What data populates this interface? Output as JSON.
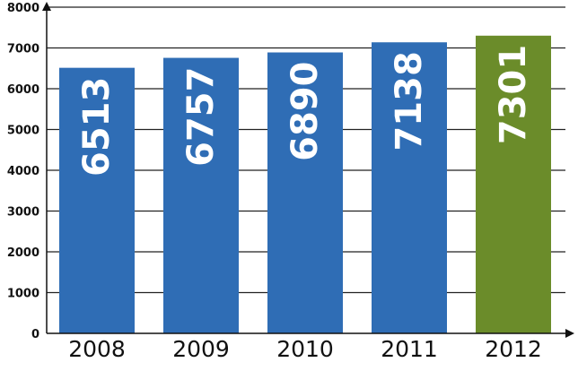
{
  "chart_data": {
    "type": "bar",
    "categories": [
      "2008",
      "2009",
      "2010",
      "2011",
      "2012"
    ],
    "values": [
      6513,
      6757,
      6890,
      7138,
      7301
    ],
    "data_labels": [
      "6513",
      "6757",
      "6890",
      "7138",
      "7301"
    ],
    "title": "",
    "xlabel": "",
    "ylabel": "",
    "ylim": [
      0,
      8000
    ],
    "yticks": [
      "0",
      "1000",
      "2000",
      "3000",
      "4000",
      "5000",
      "6000",
      "7000",
      "8000"
    ],
    "grid": true,
    "legend": "none",
    "colors": {
      "bar": "#2f6db5",
      "highlight_bar": "#6b8c2a",
      "highlight_category": "2012",
      "data_label": "#ffffff",
      "gridline": "#222222",
      "axis": "#111111"
    }
  }
}
